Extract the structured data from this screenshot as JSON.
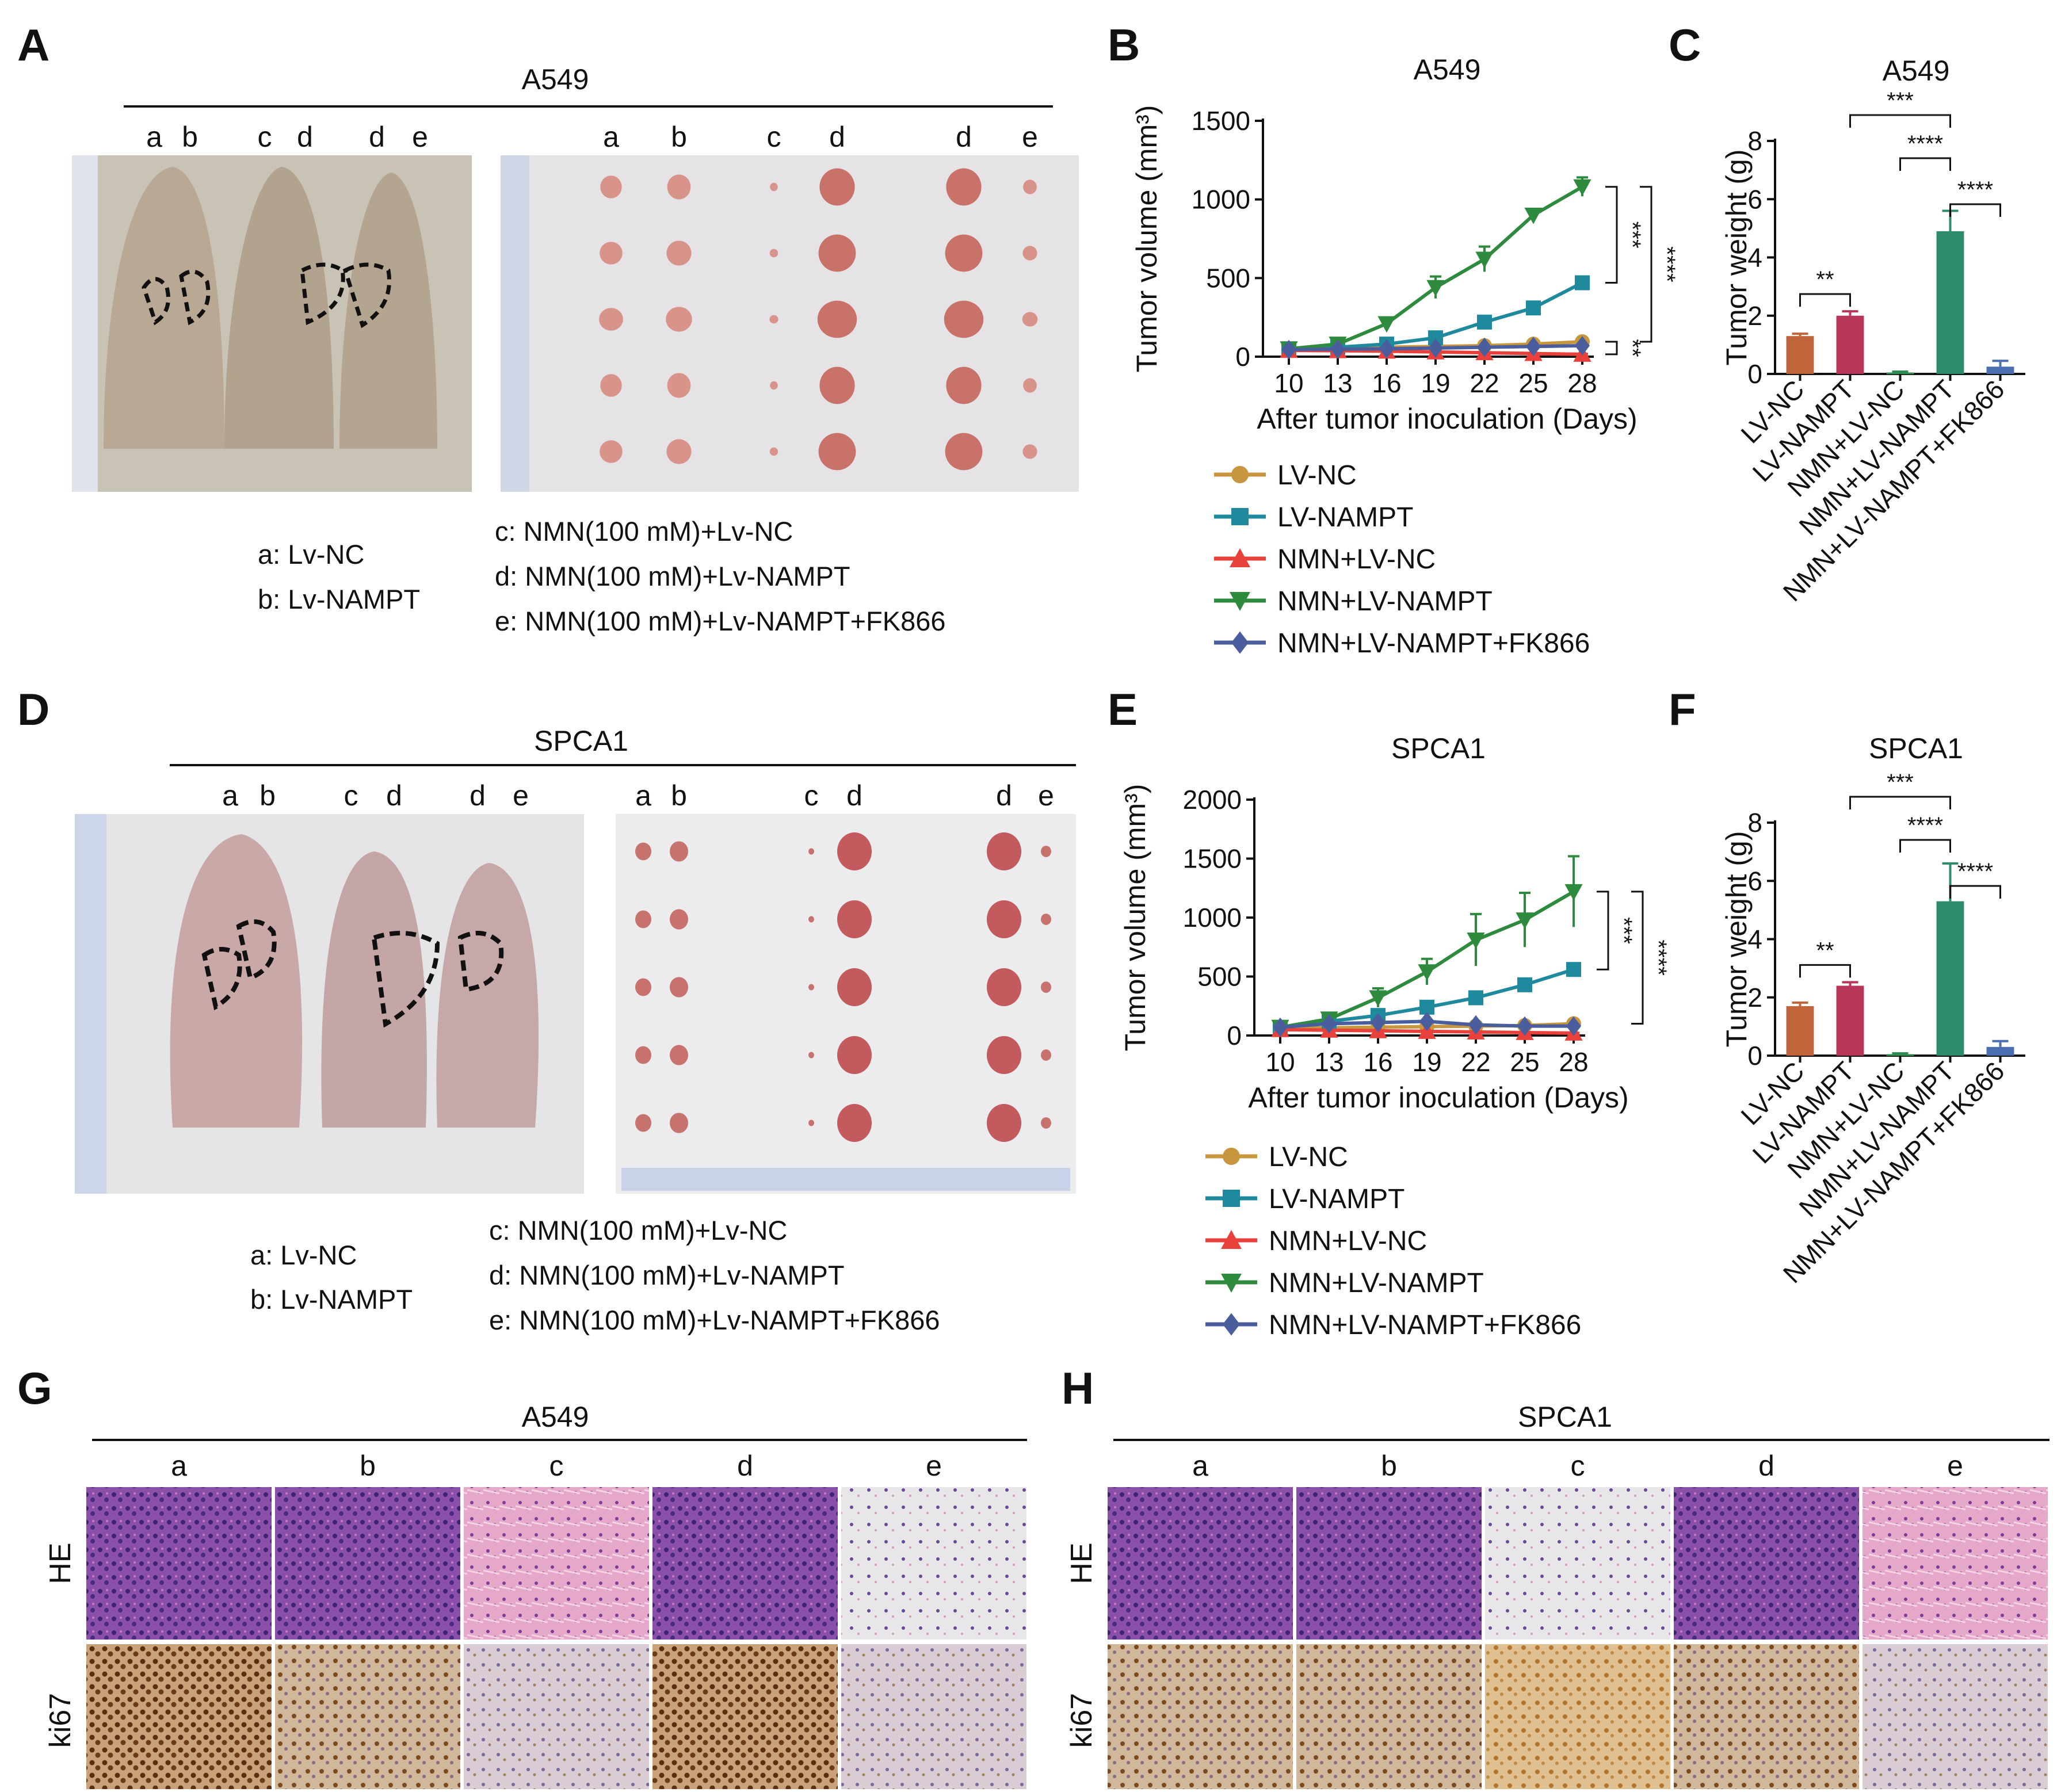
{
  "panels": {
    "A": {
      "letter": "A",
      "title": "A549",
      "mouse_labels": [
        "a",
        "b",
        "c",
        "d",
        "d",
        "e"
      ],
      "tumor_labels": [
        "a",
        "b",
        "c",
        "d",
        "d",
        "e"
      ],
      "legend_left": [
        "a: Lv-NC",
        "b: Lv-NAMPT"
      ],
      "legend_right": [
        "c: NMN(100 mM)+Lv-NC",
        "d: NMN(100 mM)+Lv-NAMPT",
        "e: NMN(100 mM)+Lv-NAMPT+FK866"
      ]
    },
    "D": {
      "letter": "D",
      "title": "SPCA1",
      "mouse_labels": [
        "a",
        "b",
        "c",
        "d",
        "d",
        "e"
      ],
      "tumor_labels": [
        "a",
        "b",
        "c",
        "d",
        "d",
        "e"
      ],
      "legend_left": [
        "a: Lv-NC",
        "b: Lv-NAMPT"
      ],
      "legend_right": [
        "c: NMN(100 mM)+Lv-NC",
        "d: NMN(100 mM)+Lv-NAMPT",
        "e: NMN(100 mM)+Lv-NAMPT+FK866"
      ]
    },
    "G": {
      "letter": "G",
      "title": "A549",
      "columns": [
        "a",
        "b",
        "c",
        "d",
        "e"
      ],
      "rows": [
        "HE",
        "ki67"
      ]
    },
    "H": {
      "letter": "H",
      "title": "SPCA1",
      "columns": [
        "a",
        "b",
        "c",
        "d",
        "e"
      ],
      "rows": [
        "HE",
        "ki67"
      ]
    }
  },
  "colors": {
    "lv_nc": "#C8963E",
    "lv_nampt": "#1F8A9E",
    "nmn_lv_nc": "#E8403A",
    "nmn_lv_nampt": "#2E8B3E",
    "nmn_fk866": "#4A5E9E",
    "bar_lv_nc": "#C0643A",
    "bar_lv_nampt": "#B8365A",
    "bar_nmn_nc": "#2F8C50",
    "bar_nmn_nampt": "#2E8B6A",
    "bar_fk866": "#4A6EB0"
  },
  "chart_data": [
    {
      "panel": "B",
      "letter": "B",
      "type": "line",
      "title": "A549",
      "xlabel": "After tumor inoculation (Days)",
      "ylabel": "Tumor volume (mm³)",
      "x": [
        10,
        13,
        16,
        19,
        22,
        25,
        28
      ],
      "xticks": [
        "10",
        "13",
        "16",
        "19",
        "22",
        "25",
        "28"
      ],
      "ylim": [
        0,
        1500
      ],
      "yticks": [
        0,
        500,
        1000,
        1500
      ],
      "series": [
        {
          "name": "LV-NC",
          "marker": "circle",
          "color": "#C8963E",
          "values": [
            50,
            55,
            60,
            65,
            70,
            80,
            95
          ],
          "err": [
            5,
            5,
            5,
            6,
            6,
            8,
            10
          ]
        },
        {
          "name": "LV-NAMPT",
          "marker": "square",
          "color": "#1F8A9E",
          "values": [
            50,
            60,
            80,
            120,
            220,
            310,
            470
          ],
          "err": [
            5,
            6,
            8,
            12,
            20,
            25,
            35
          ]
        },
        {
          "name": "NMN+LV-NC",
          "marker": "triangle-up",
          "color": "#E8403A",
          "values": [
            40,
            38,
            35,
            30,
            25,
            20,
            15
          ],
          "err": [
            4,
            4,
            4,
            4,
            3,
            3,
            3
          ]
        },
        {
          "name": "NMN+LV-NAMPT",
          "marker": "triangle-down",
          "color": "#2E8B3E",
          "values": [
            50,
            80,
            210,
            440,
            620,
            900,
            1080
          ],
          "err": [
            6,
            10,
            30,
            70,
            80,
            40,
            60
          ]
        },
        {
          "name": "NMN+LV-NAMPT+FK866",
          "marker": "diamond",
          "color": "#4A5E9E",
          "values": [
            45,
            48,
            50,
            55,
            60,
            65,
            70
          ],
          "err": [
            4,
            4,
            5,
            5,
            6,
            6,
            7
          ]
        }
      ],
      "significance": [
        {
          "label": "***"
        },
        {
          "label": "****"
        },
        {
          "label": "**"
        }
      ]
    },
    {
      "panel": "C",
      "letter": "C",
      "type": "bar",
      "title": "A549",
      "ylabel": "Tumor weight (g)",
      "categories": [
        "LV-NC",
        "LV-NAMPT",
        "NMN+LV-NC",
        "NMN+LV-NAMPT",
        "NMN+LV-NAMPT+FK866"
      ],
      "values": [
        1.3,
        2.0,
        0.05,
        4.9,
        0.25
      ],
      "err": [
        0.08,
        0.15,
        0.03,
        0.7,
        0.2
      ],
      "ylim": [
        0,
        8
      ],
      "yticks": [
        0,
        2,
        4,
        6,
        8
      ],
      "significance": [
        {
          "label": "**"
        },
        {
          "label": "***"
        },
        {
          "label": "****"
        },
        {
          "label": "****"
        }
      ]
    },
    {
      "panel": "E",
      "letter": "E",
      "type": "line",
      "title": "SPCA1",
      "xlabel": "After tumor inoculation (Days)",
      "ylabel": "Tumor volume (mm³)",
      "x": [
        10,
        13,
        16,
        19,
        22,
        25,
        28
      ],
      "xticks": [
        "10",
        "13",
        "16",
        "19",
        "22",
        "25",
        "28"
      ],
      "ylim": [
        0,
        2000
      ],
      "yticks": [
        0,
        500,
        1000,
        1500,
        2000
      ],
      "series": [
        {
          "name": "LV-NC",
          "marker": "circle",
          "color": "#C8963E",
          "values": [
            60,
            65,
            70,
            75,
            80,
            85,
            100
          ],
          "err": [
            6,
            6,
            6,
            7,
            7,
            8,
            10
          ]
        },
        {
          "name": "LV-NAMPT",
          "marker": "square",
          "color": "#1F8A9E",
          "values": [
            60,
            120,
            170,
            240,
            320,
            430,
            560
          ],
          "err": [
            8,
            12,
            18,
            22,
            28,
            35,
            45
          ]
        },
        {
          "name": "NMN+LV-NC",
          "marker": "triangle-up",
          "color": "#E8403A",
          "values": [
            50,
            45,
            40,
            35,
            30,
            25,
            20
          ],
          "err": [
            5,
            4,
            4,
            4,
            3,
            3,
            3
          ]
        },
        {
          "name": "NMN+LV-NAMPT",
          "marker": "triangle-down",
          "color": "#2E8B3E",
          "values": [
            70,
            140,
            320,
            540,
            810,
            980,
            1220
          ],
          "err": [
            10,
            25,
            80,
            110,
            220,
            230,
            300
          ]
        },
        {
          "name": "NMN+LV-NAMPT+FK866",
          "marker": "diamond",
          "color": "#4A5E9E",
          "values": [
            70,
            100,
            110,
            120,
            90,
            80,
            80
          ],
          "err": [
            8,
            10,
            12,
            12,
            10,
            9,
            9
          ]
        }
      ],
      "significance": [
        {
          "label": "***"
        },
        {
          "label": "****"
        }
      ]
    },
    {
      "panel": "F",
      "letter": "F",
      "type": "bar",
      "title": "SPCA1",
      "ylabel": "Tumor weight (g)",
      "categories": [
        "LV-NC",
        "LV-NAMPT",
        "NMN+LV-NC",
        "NMN+LV-NAMPT",
        "NMN+LV-NAMPT+FK866"
      ],
      "values": [
        1.7,
        2.4,
        0.05,
        5.3,
        0.3
      ],
      "err": [
        0.12,
        0.12,
        0.03,
        1.3,
        0.2
      ],
      "ylim": [
        0,
        8
      ],
      "yticks": [
        0,
        2,
        4,
        6,
        8
      ],
      "significance": [
        {
          "label": "**"
        },
        {
          "label": "***"
        },
        {
          "label": "****"
        },
        {
          "label": "****"
        }
      ]
    }
  ]
}
